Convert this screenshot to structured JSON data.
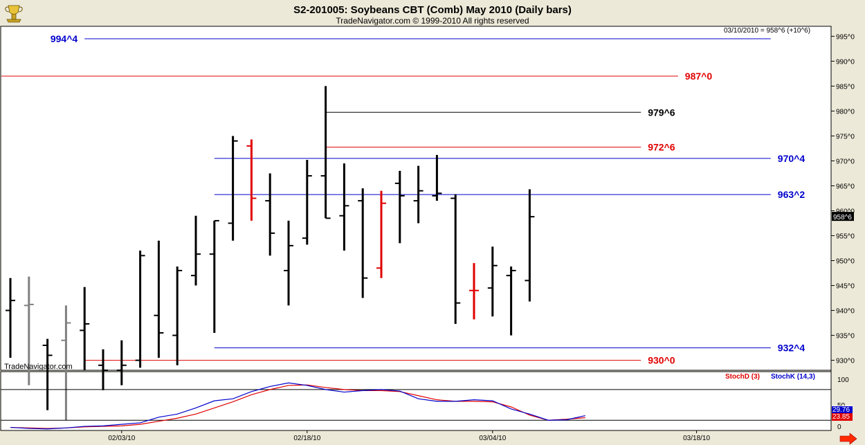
{
  "header": {
    "title": "S2-201005:  Soybeans CBT (Comb) May 2010  (Daily bars)",
    "subtitle": "TradeNavigator.com © 1999-2010 All rights reserved",
    "quote": "03/10/2010 = 958^6 (+10^6)",
    "watermark": "TradeNavigator.com",
    "current_price_tag": "958^6",
    "nav_arrow": "right-arrow-icon",
    "logo": "trophy-logo-icon"
  },
  "colors": {
    "background": "#ffffff",
    "bar_black": "#000000",
    "bar_gray": "#808080",
    "bar_red": "#e00000",
    "bar_green": "#00cc00",
    "line_red": "#e00000",
    "line_blue": "#0000cc",
    "line_black": "#000000"
  },
  "chart_data": [
    {
      "type": "ohlc",
      "title": "S2-201005:  Soybeans CBT (Comb) May 2010  (Daily bars)",
      "ylim": [
        928,
        997
      ],
      "y_ticks": [
        930,
        935,
        940,
        945,
        950,
        955,
        960,
        965,
        970,
        975,
        980,
        985,
        990,
        995
      ],
      "y_tick_labels": [
        "930^0",
        "935^0",
        "940^0",
        "945^0",
        "950^0",
        "955^0",
        "960^0",
        "965^0",
        "970^0",
        "975^0",
        "980^0",
        "985^0",
        "990^0",
        "995^0"
      ],
      "x_tick_labels": [
        {
          "date": "2010-02-03",
          "label": "02/03/10"
        },
        {
          "date": "2010-02-18",
          "label": "02/18/10"
        },
        {
          "date": "2010-03-04",
          "label": "03/04/10"
        },
        {
          "date": "2010-03-18",
          "label": "03/18/10"
        }
      ],
      "bars": [
        {
          "date": "2010-01-26",
          "open": 940.0,
          "high": 946.5,
          "low": 930.5,
          "close": 942.0,
          "color": "black"
        },
        {
          "date": "2010-01-27",
          "open": 941.0,
          "high": 946.8,
          "low": 925.0,
          "close": 941.2,
          "color": "gray"
        },
        {
          "date": "2010-01-28",
          "open": 933.0,
          "high": 934.3,
          "low": 920.0,
          "close": 931.0,
          "color": "black"
        },
        {
          "date": "2010-01-29",
          "open": 934.0,
          "high": 941.0,
          "low": 918.0,
          "close": 937.5,
          "color": "gray"
        },
        {
          "date": "2010-02-01",
          "open": 936.0,
          "high": 944.7,
          "low": 928.0,
          "close": 937.3,
          "color": "black"
        },
        {
          "date": "2010-02-02",
          "open": 929.0,
          "high": 932.2,
          "low": 924.0,
          "close": 928.0,
          "color": "black"
        },
        {
          "date": "2010-02-03",
          "open": 928.0,
          "high": 934.0,
          "low": 925.0,
          "close": 929.0,
          "color": "black"
        },
        {
          "date": "2010-02-04",
          "open": 930.0,
          "high": 952.0,
          "low": 928.5,
          "close": 951.0,
          "color": "black"
        },
        {
          "date": "2010-02-05",
          "open": 939.0,
          "high": 954.0,
          "low": 930.5,
          "close": 935.5,
          "color": "black"
        },
        {
          "date": "2010-02-08",
          "open": 935.0,
          "high": 948.8,
          "low": 929.0,
          "close": 948.0,
          "color": "black"
        },
        {
          "date": "2010-02-09",
          "open": 947.0,
          "high": 959.0,
          "low": 945.0,
          "close": 951.3,
          "color": "black"
        },
        {
          "date": "2010-02-10",
          "open": 951.3,
          "high": 958.0,
          "low": 935.5,
          "close": 958.0,
          "color": "black"
        },
        {
          "date": "2010-02-11",
          "open": 957.5,
          "high": 975.0,
          "low": 954.0,
          "close": 974.0,
          "color": "black"
        },
        {
          "date": "2010-02-12",
          "open": 973.0,
          "high": 974.3,
          "low": 958.0,
          "close": 962.5,
          "color": "red"
        },
        {
          "date": "2010-02-16",
          "open": 962.0,
          "high": 967.5,
          "low": 951.0,
          "close": 955.5,
          "color": "black"
        },
        {
          "date": "2010-02-17",
          "open": 948.0,
          "high": 958.0,
          "low": 941.0,
          "close": 953.0,
          "color": "black"
        },
        {
          "date": "2010-02-18",
          "open": 954.5,
          "high": 970.2,
          "low": 953.2,
          "close": 967.0,
          "color": "black"
        },
        {
          "date": "2010-02-19",
          "open": 967.0,
          "high": 985.0,
          "low": 958.5,
          "close": 958.5,
          "color": "black"
        },
        {
          "date": "2010-02-22",
          "open": 959.0,
          "high": 969.5,
          "low": 952.0,
          "close": 961.0,
          "color": "black"
        },
        {
          "date": "2010-02-23",
          "open": 962.0,
          "high": 964.5,
          "low": 942.5,
          "close": 946.5,
          "color": "black"
        },
        {
          "date": "2010-02-24",
          "open": 948.5,
          "high": 964.0,
          "low": 946.5,
          "close": 961.5,
          "color": "red"
        },
        {
          "date": "2010-02-25",
          "open": 965.5,
          "high": 968.0,
          "low": 953.5,
          "close": 963.0,
          "color": "black"
        },
        {
          "date": "2010-02-26",
          "open": 962.0,
          "high": 969.0,
          "low": 957.5,
          "close": 964.0,
          "color": "black"
        },
        {
          "date": "2010-03-01",
          "open": 963.0,
          "high": 971.2,
          "low": 962.0,
          "close": 963.5,
          "color": "black"
        },
        {
          "date": "2010-03-02",
          "open": 962.5,
          "high": 963.3,
          "low": 937.3,
          "close": 941.5,
          "color": "black"
        },
        {
          "date": "2010-03-03",
          "open": 944.0,
          "high": 949.5,
          "low": 938.2,
          "close": 944.0,
          "color": "red"
        },
        {
          "date": "2010-03-04",
          "open": 944.5,
          "high": 952.8,
          "low": 938.8,
          "close": 949.0,
          "color": "black"
        },
        {
          "date": "2010-03-05",
          "open": 947.0,
          "high": 948.8,
          "low": 935.0,
          "close": 948.0,
          "color": "black"
        },
        {
          "date": "2010-03-08",
          "open": 946.0,
          "high": 964.3,
          "low": 941.8,
          "close": 958.8,
          "color": "black"
        }
      ],
      "levels": [
        {
          "value": 994.5,
          "label": "994^4",
          "color": "blue",
          "from": "2010-02-01",
          "to": "2010-03-24",
          "label_pos": "left"
        },
        {
          "value": 987.0,
          "label": "987^0",
          "color": "red",
          "from": "2010-01-20",
          "to": "2010-03-17",
          "label_pos": "right"
        },
        {
          "value": 979.75,
          "label": "979^6",
          "color": "black",
          "from": "2010-02-19",
          "to": "2010-03-15",
          "label_pos": "right"
        },
        {
          "value": 972.75,
          "label": "972^6",
          "color": "red",
          "from": "2010-02-19",
          "to": "2010-03-15",
          "label_pos": "right"
        },
        {
          "value": 970.5,
          "label": "970^4",
          "color": "blue",
          "from": "2010-02-10",
          "to": "2010-03-24",
          "label_pos": "right"
        },
        {
          "value": 963.25,
          "label": "963^2",
          "color": "blue",
          "from": "2010-02-10",
          "to": "2010-03-24",
          "label_pos": "right"
        },
        {
          "value": 932.5,
          "label": "932^4",
          "color": "blue",
          "from": "2010-02-10",
          "to": "2010-03-24",
          "label_pos": "right"
        },
        {
          "value": 930.0,
          "label": "930^0",
          "color": "red",
          "from": "2010-02-01",
          "to": "2010-03-15",
          "label_pos": "right"
        }
      ]
    },
    {
      "type": "line",
      "title": "",
      "ylim": [
        0,
        115
      ],
      "y_ticks": [
        50,
        100
      ],
      "reference_lines": [
        20,
        80
      ],
      "current_values": [
        "23.85",
        "29.76"
      ],
      "series": [
        {
          "name": "StochD (3)",
          "color": "red",
          "values": [
            6,
            5,
            4,
            5,
            7,
            8,
            9,
            12,
            18,
            24,
            32,
            44,
            56,
            70,
            80,
            88,
            89,
            84,
            80,
            78,
            78,
            76,
            68,
            60,
            57,
            57,
            56,
            46,
            30,
            20,
            22,
            25
          ]
        },
        {
          "name": "StochK (14,3)",
          "color": "blue",
          "values": [
            6,
            4,
            3,
            5,
            8,
            9,
            12,
            15,
            26,
            32,
            44,
            58,
            62,
            76,
            86,
            93,
            88,
            80,
            75,
            78,
            80,
            77,
            62,
            57,
            57,
            60,
            58,
            42,
            32,
            20,
            21,
            29
          ]
        }
      ]
    }
  ]
}
